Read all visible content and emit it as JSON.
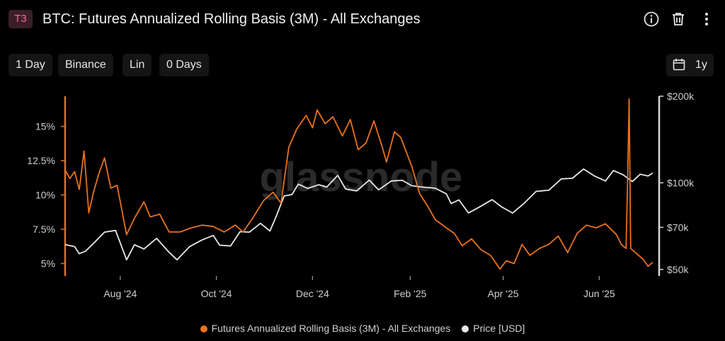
{
  "header": {
    "badge": "T3",
    "title": "BTC: Futures Annualized Rolling Basis (3M) - All Exchanges",
    "icons": [
      "info-icon",
      "trash-icon",
      "more-vertical-icon"
    ]
  },
  "toolbar": {
    "resolution": "1 Day",
    "exchange": "Binance",
    "scale": "Lin",
    "smoothing": "0 Days",
    "range": "1y",
    "range_icon": "calendar-icon"
  },
  "watermark": "glassnode",
  "colors": {
    "basis": "#e8721c",
    "price": "#e8e8e8",
    "background": "#000000",
    "badge": "#f06a8f"
  },
  "chart_data": {
    "type": "line",
    "x_ticks": [
      "Aug '24",
      "Oct '24",
      "Dec '24",
      "Feb '25",
      "Apr '25",
      "Jun '25"
    ],
    "y_left_ticks": [
      "5%",
      "7.5%",
      "10%",
      "12.5%",
      "15%"
    ],
    "y_right_ticks": [
      "$50k",
      "$70k",
      "$100k",
      "$200k"
    ],
    "y_left_scale": "linear",
    "y_right_scale": "log",
    "x_start": "2024-06-27",
    "x_end": "2025-07-05",
    "grid": false,
    "legend_position": "bottom-center",
    "series": [
      {
        "name": "Futures Annualized Rolling Basis (3M) - All Exchanges",
        "axis": "left",
        "unit": "%",
        "points": [
          [
            "2024-06-27",
            11.8
          ],
          [
            "2024-06-30",
            11.2
          ],
          [
            "2024-07-03",
            11.7
          ],
          [
            "2024-07-06",
            10.4
          ],
          [
            "2024-07-09",
            13.2
          ],
          [
            "2024-07-12",
            8.7
          ],
          [
            "2024-07-15",
            10.2
          ],
          [
            "2024-07-18",
            11.4
          ],
          [
            "2024-07-22",
            12.7
          ],
          [
            "2024-07-26",
            10.5
          ],
          [
            "2024-07-30",
            10.7
          ],
          [
            "2024-08-05",
            7.1
          ],
          [
            "2024-08-10",
            8.3
          ],
          [
            "2024-08-16",
            9.5
          ],
          [
            "2024-08-20",
            8.4
          ],
          [
            "2024-08-26",
            8.6
          ],
          [
            "2024-09-01",
            7.3
          ],
          [
            "2024-09-08",
            7.3
          ],
          [
            "2024-09-15",
            7.6
          ],
          [
            "2024-09-22",
            7.8
          ],
          [
            "2024-09-29",
            7.7
          ],
          [
            "2024-10-06",
            7.3
          ],
          [
            "2024-10-13",
            7.8
          ],
          [
            "2024-10-18",
            7.3
          ],
          [
            "2024-10-24",
            8.3
          ],
          [
            "2024-10-31",
            9.6
          ],
          [
            "2024-11-06",
            10.2
          ],
          [
            "2024-11-11",
            9.4
          ],
          [
            "2024-11-16",
            13.5
          ],
          [
            "2024-11-21",
            14.8
          ],
          [
            "2024-11-27",
            15.8
          ],
          [
            "2024-12-01",
            14.9
          ],
          [
            "2024-12-04",
            16.2
          ],
          [
            "2024-12-09",
            15.2
          ],
          [
            "2024-12-14",
            15.7
          ],
          [
            "2024-12-20",
            14.3
          ],
          [
            "2024-12-25",
            15.5
          ],
          [
            "2024-12-30",
            13.3
          ],
          [
            "2025-01-04",
            13.8
          ],
          [
            "2025-01-09",
            15.4
          ],
          [
            "2025-01-14",
            13.6
          ],
          [
            "2025-01-17",
            12.4
          ],
          [
            "2025-01-22",
            14.6
          ],
          [
            "2025-01-26",
            14.2
          ],
          [
            "2025-02-02",
            12.1
          ],
          [
            "2025-02-07",
            10.1
          ],
          [
            "2025-02-12",
            9.2
          ],
          [
            "2025-02-17",
            8.2
          ],
          [
            "2025-02-24",
            7.6
          ],
          [
            "2025-03-01",
            7.2
          ],
          [
            "2025-03-06",
            6.3
          ],
          [
            "2025-03-12",
            6.8
          ],
          [
            "2025-03-18",
            6.0
          ],
          [
            "2025-03-24",
            5.6
          ],
          [
            "2025-03-30",
            4.6
          ],
          [
            "2025-04-03",
            5.2
          ],
          [
            "2025-04-08",
            5.0
          ],
          [
            "2025-04-13",
            6.4
          ],
          [
            "2025-04-18",
            5.6
          ],
          [
            "2025-04-24",
            6.1
          ],
          [
            "2025-04-30",
            6.4
          ],
          [
            "2025-05-06",
            7.0
          ],
          [
            "2025-05-12",
            5.8
          ],
          [
            "2025-05-18",
            7.2
          ],
          [
            "2025-05-24",
            7.8
          ],
          [
            "2025-05-30",
            7.6
          ],
          [
            "2025-06-05",
            7.9
          ],
          [
            "2025-06-12",
            7.1
          ],
          [
            "2025-06-15",
            6.4
          ],
          [
            "2025-06-18",
            6.1
          ],
          [
            "2025-06-19",
            10.9
          ],
          [
            "2025-06-20",
            17.0
          ],
          [
            "2025-06-21",
            6.1
          ],
          [
            "2025-06-25",
            5.7
          ],
          [
            "2025-06-29",
            5.3
          ],
          [
            "2025-07-02",
            4.8
          ],
          [
            "2025-07-05",
            5.1
          ]
        ]
      },
      {
        "name": "Price [USD]",
        "axis": "right",
        "unit": "USD",
        "points": [
          [
            "2024-06-27",
            61000
          ],
          [
            "2024-07-03",
            60000
          ],
          [
            "2024-07-06",
            56700
          ],
          [
            "2024-07-10",
            57900
          ],
          [
            "2024-07-14",
            60800
          ],
          [
            "2024-07-18",
            64000
          ],
          [
            "2024-07-22",
            67400
          ],
          [
            "2024-07-29",
            68300
          ],
          [
            "2024-08-05",
            54000
          ],
          [
            "2024-08-10",
            60900
          ],
          [
            "2024-08-16",
            58900
          ],
          [
            "2024-08-24",
            64100
          ],
          [
            "2024-09-01",
            57300
          ],
          [
            "2024-09-06",
            54000
          ],
          [
            "2024-09-14",
            60000
          ],
          [
            "2024-09-22",
            63300
          ],
          [
            "2024-09-29",
            65600
          ],
          [
            "2024-10-03",
            60700
          ],
          [
            "2024-10-10",
            60300
          ],
          [
            "2024-10-16",
            67600
          ],
          [
            "2024-10-22",
            67400
          ],
          [
            "2024-10-29",
            72300
          ],
          [
            "2024-11-04",
            68000
          ],
          [
            "2024-11-08",
            76500
          ],
          [
            "2024-11-13",
            90000
          ],
          [
            "2024-11-18",
            91000
          ],
          [
            "2024-11-22",
            98900
          ],
          [
            "2024-11-28",
            95600
          ],
          [
            "2024-12-05",
            98500
          ],
          [
            "2024-12-10",
            96600
          ],
          [
            "2024-12-17",
            106100
          ],
          [
            "2024-12-22",
            95200
          ],
          [
            "2024-12-29",
            93700
          ],
          [
            "2025-01-06",
            102200
          ],
          [
            "2025-01-12",
            94500
          ],
          [
            "2025-01-20",
            101500
          ],
          [
            "2025-01-27",
            102000
          ],
          [
            "2025-02-02",
            97700
          ],
          [
            "2025-02-09",
            96600
          ],
          [
            "2025-02-17",
            95800
          ],
          [
            "2025-02-24",
            91500
          ],
          [
            "2025-02-27",
            84700
          ],
          [
            "2025-03-04",
            87200
          ],
          [
            "2025-03-10",
            78500
          ],
          [
            "2025-03-18",
            83000
          ],
          [
            "2025-03-25",
            87400
          ],
          [
            "2025-03-31",
            82500
          ],
          [
            "2025-04-07",
            78500
          ],
          [
            "2025-04-14",
            84500
          ],
          [
            "2025-04-22",
            93400
          ],
          [
            "2025-04-30",
            94200
          ],
          [
            "2025-05-08",
            103200
          ],
          [
            "2025-05-15",
            103700
          ],
          [
            "2025-05-22",
            111700
          ],
          [
            "2025-05-29",
            105600
          ],
          [
            "2025-06-05",
            101500
          ],
          [
            "2025-06-10",
            110300
          ],
          [
            "2025-06-16",
            106800
          ],
          [
            "2025-06-22",
            101000
          ],
          [
            "2025-06-27",
            107100
          ],
          [
            "2025-07-02",
            105600
          ],
          [
            "2025-07-05",
            108200
          ]
        ]
      }
    ],
    "y_left_range": [
      4.2,
      17.2
    ],
    "y_right_range": [
      48000,
      200000
    ]
  },
  "legend": [
    {
      "label": "Futures Annualized Rolling Basis (3M) - All Exchanges",
      "color": "#e8721c"
    },
    {
      "label": "Price [USD]",
      "color": "#e8e8e8"
    }
  ]
}
